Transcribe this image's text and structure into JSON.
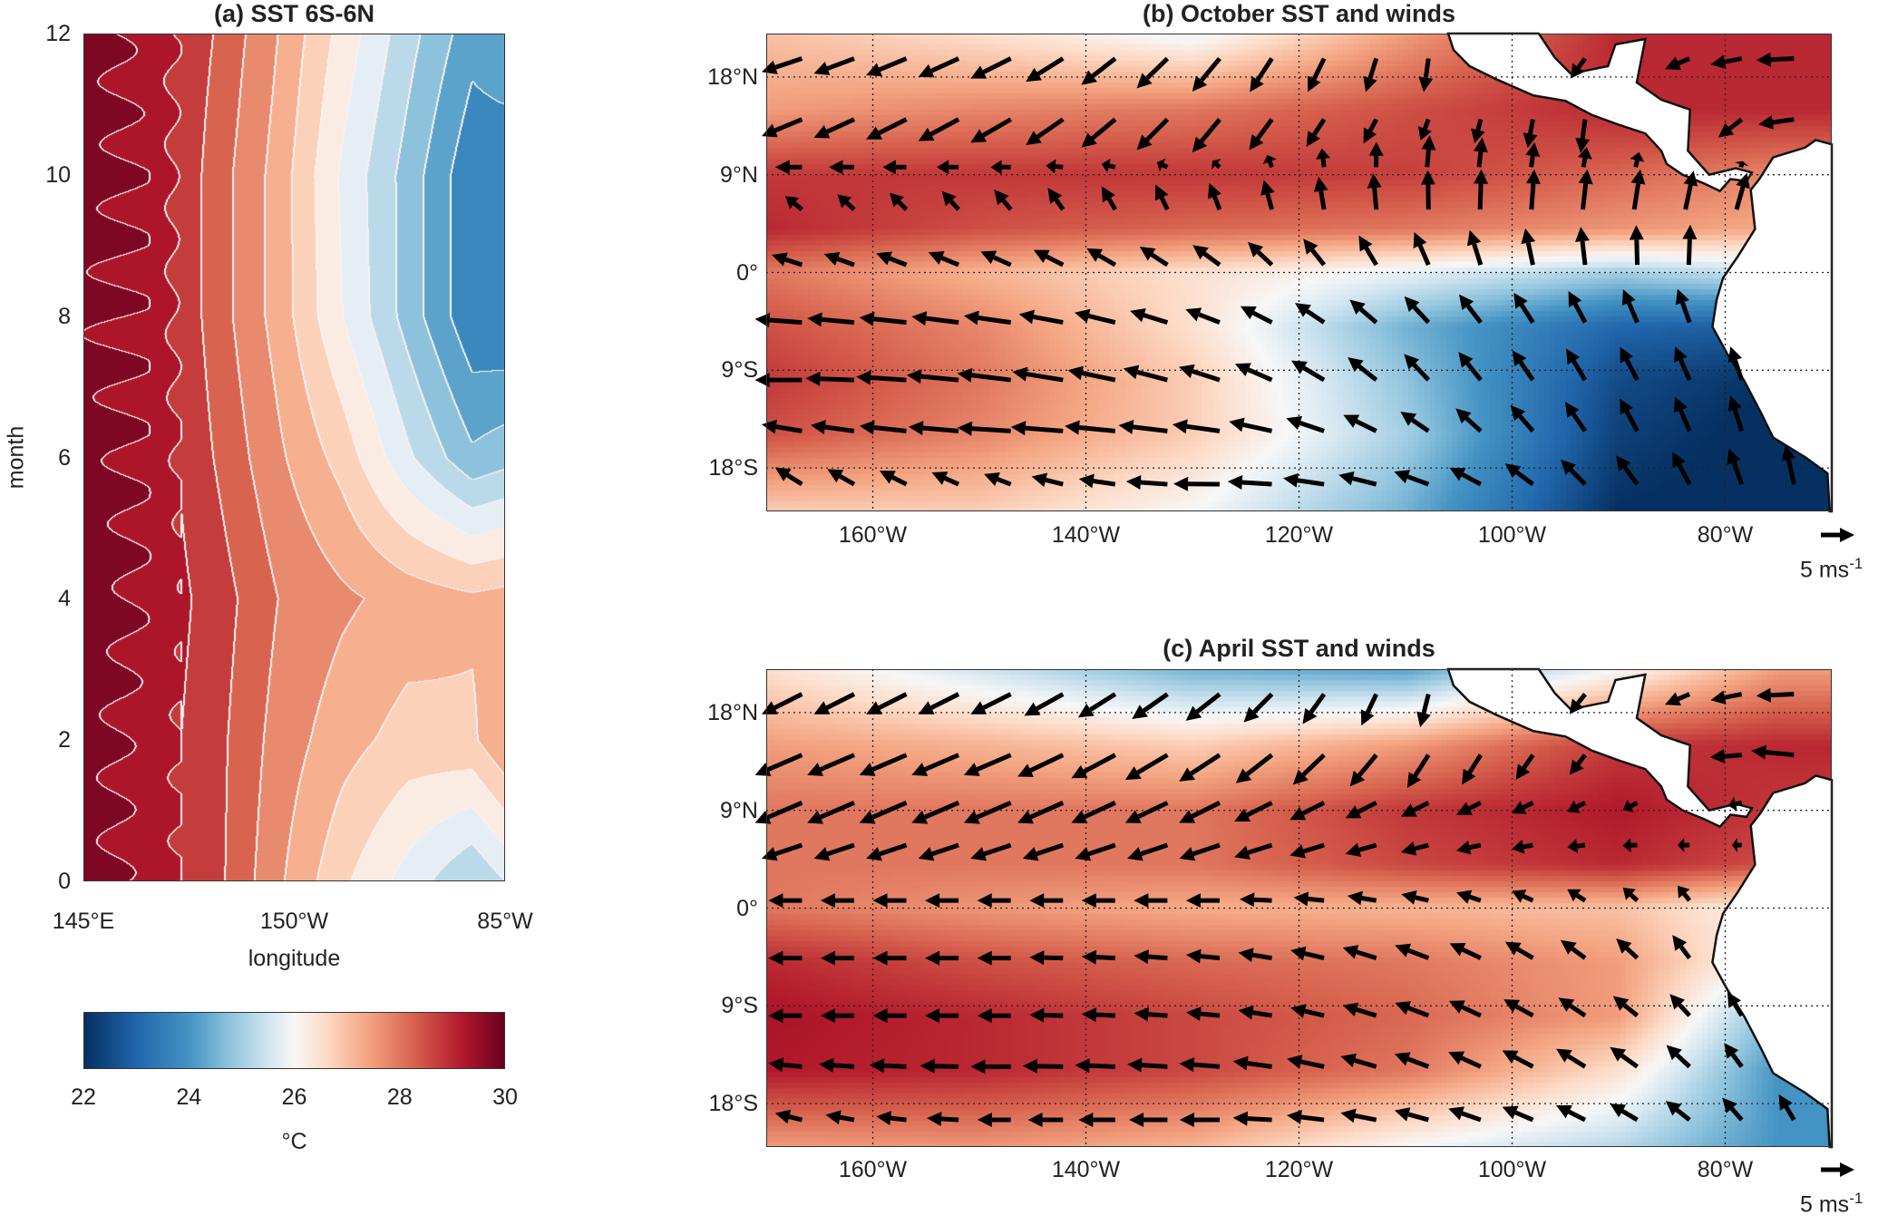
{
  "colormap": {
    "stops": [
      22,
      23,
      24,
      24.8,
      25.5,
      26,
      26.6,
      27.4,
      28.3,
      29.2,
      30
    ],
    "colors": [
      "#053061",
      "#2166ac",
      "#4393c3",
      "#92c5de",
      "#d1e5f0",
      "#f7f7f7",
      "#fddbc7",
      "#f4a582",
      "#d6604d",
      "#b2182b",
      "#67001f"
    ]
  },
  "chart_data": [
    {
      "id": "a",
      "type": "heatmap",
      "subtype": "filled-contour",
      "title": "(a) SST 6S-6N",
      "xlabel": "longitude",
      "ylabel": "month",
      "xlim": [
        145,
        275
      ],
      "ylim": [
        0,
        12
      ],
      "xticks": [
        {
          "value": 145,
          "label": "145°E"
        },
        {
          "value": 210,
          "label": "150°W"
        },
        {
          "value": 275,
          "label": "85°W"
        }
      ],
      "yticks": [
        0,
        2,
        4,
        6,
        8,
        10,
        12
      ],
      "contour_interval": 0.5,
      "lons": [
        145,
        165,
        185,
        205,
        225,
        245,
        265,
        275
      ],
      "months": [
        0,
        2,
        4,
        6,
        8,
        10,
        12
      ],
      "sst": [
        [
          29.7,
          29.3,
          28.7,
          27.6,
          26.6,
          25.8,
          25.0,
          25.5
        ],
        [
          29.7,
          29.3,
          28.7,
          27.8,
          27.2,
          26.8,
          26.9,
          27.5
        ],
        [
          29.8,
          29.4,
          28.8,
          28.0,
          27.6,
          27.3,
          27.1,
          27.2
        ],
        [
          29.7,
          29.4,
          28.5,
          27.6,
          26.8,
          25.6,
          24.6,
          24.8
        ],
        [
          29.6,
          29.4,
          28.3,
          27.3,
          26.0,
          24.8,
          23.6,
          23.5
        ],
        [
          29.7,
          29.4,
          28.3,
          27.3,
          25.9,
          24.8,
          23.6,
          23.5
        ],
        [
          29.7,
          29.3,
          28.5,
          27.5,
          26.3,
          25.2,
          24.2,
          24.5
        ]
      ],
      "colorbar": {
        "ticks": [
          22,
          24,
          26,
          28,
          30
        ],
        "label": "°C",
        "range": [
          22,
          30
        ]
      }
    },
    {
      "id": "b",
      "type": "heatmap",
      "subtype": "map-with-quiver",
      "title": "(b) October SST and winds",
      "xlim": [
        -170,
        -70
      ],
      "ylim": [
        -22,
        22
      ],
      "xticks": [
        {
          "value": -160,
          "label": "160°W"
        },
        {
          "value": -140,
          "label": "140°W"
        },
        {
          "value": -120,
          "label": "120°W"
        },
        {
          "value": -100,
          "label": "100°W"
        },
        {
          "value": -80,
          "label": "80°W"
        }
      ],
      "yticks": [
        {
          "value": 18,
          "label": "18°N"
        },
        {
          "value": 9,
          "label": "9°N"
        },
        {
          "value": 0,
          "label": "0°"
        },
        {
          "value": -9,
          "label": "9°S"
        },
        {
          "value": -18,
          "label": "18°S"
        }
      ],
      "scale_arrow": {
        "value": 5,
        "label": "5 ms",
        "unit_sup": "-1"
      },
      "sst_lats": [
        22,
        15,
        9,
        4,
        0,
        -5,
        -10,
        -15,
        -22
      ],
      "sst_lons": [
        -170,
        -150,
        -130,
        -110,
        -90,
        -75
      ],
      "sst": [
        [
          27.0,
          26.5,
          25.8,
          27.5,
          29.0,
          29.0
        ],
        [
          27.5,
          27.8,
          28.0,
          28.5,
          29.0,
          29.0
        ],
        [
          28.8,
          28.8,
          28.8,
          28.7,
          28.2,
          27.8
        ],
        [
          29.0,
          28.5,
          28.2,
          28.0,
          27.6,
          27.3
        ],
        [
          28.0,
          27.2,
          26.5,
          25.8,
          25.0,
          25.5
        ],
        [
          28.5,
          27.8,
          26.5,
          24.5,
          23.0,
          22.8
        ],
        [
          28.8,
          28.0,
          26.8,
          24.8,
          22.5,
          22.0
        ],
        [
          28.5,
          27.8,
          26.8,
          25.0,
          22.3,
          21.8
        ],
        [
          26.8,
          26.8,
          26.0,
          24.5,
          22.0,
          21.8
        ]
      ],
      "wind_lats": [
        19.7,
        14.1,
        9.7,
        5.8,
        0.7,
        -4.6,
        -9.9,
        -14.6,
        -19.5
      ],
      "wind_lons": [
        -167.5,
        -147.5,
        -127.5,
        -107.5,
        -87.5,
        -72.5
      ],
      "wind_u": [
        [
          -6,
          -6,
          -4,
          -0.5,
          -3,
          -6
        ],
        [
          -6,
          -6,
          -4,
          -1,
          -0.5,
          -6
        ],
        [
          -4,
          -3,
          -1,
          0.5,
          0.5,
          0
        ],
        [
          -2.5,
          -2.5,
          -1.5,
          0,
          1,
          2
        ],
        [
          -4.5,
          -4.5,
          -4,
          -2,
          0,
          1
        ],
        [
          -7,
          -7,
          -5,
          -3.5,
          -2,
          -1
        ],
        [
          -7,
          -8,
          -6,
          -3.5,
          -2.5,
          -1
        ],
        [
          -6,
          -8,
          -7,
          -4,
          -2.5,
          -1
        ],
        [
          -4,
          -4,
          -7,
          -5,
          -3,
          -1
        ]
      ],
      "wind_v": [
        [
          -2,
          -3,
          -5,
          -5,
          -2,
          0
        ],
        [
          -2.5,
          -3.5,
          -5,
          -3,
          -6,
          0
        ],
        [
          0,
          0,
          1,
          5,
          2,
          0
        ],
        [
          2,
          3,
          4,
          6,
          6,
          5
        ],
        [
          1.5,
          2,
          3,
          5,
          6,
          6
        ],
        [
          0.5,
          1,
          2,
          4,
          5,
          5
        ],
        [
          0,
          1,
          2,
          4,
          5,
          5
        ],
        [
          1,
          0.5,
          1,
          3,
          5,
          5.5
        ],
        [
          2.5,
          1.5,
          0,
          2,
          4.5,
          6
        ]
      ]
    },
    {
      "id": "c",
      "type": "heatmap",
      "subtype": "map-with-quiver",
      "title": "(c) April SST and winds",
      "xlim": [
        -170,
        -70
      ],
      "ylim": [
        -22,
        22
      ],
      "xticks": [
        {
          "value": -160,
          "label": "160°W"
        },
        {
          "value": -140,
          "label": "140°W"
        },
        {
          "value": -120,
          "label": "120°W"
        },
        {
          "value": -100,
          "label": "100°W"
        },
        {
          "value": -80,
          "label": "80°W"
        }
      ],
      "yticks": [
        {
          "value": 18,
          "label": "18°N"
        },
        {
          "value": 9,
          "label": "9°N"
        },
        {
          "value": 0,
          "label": "0°"
        },
        {
          "value": -9,
          "label": "9°S"
        },
        {
          "value": -18,
          "label": "18°S"
        }
      ],
      "scale_arrow": {
        "value": 5,
        "label": "5 ms",
        "unit_sup": "-1"
      },
      "sst_lats": [
        22,
        15,
        9,
        4,
        0,
        -5,
        -10,
        -15,
        -22
      ],
      "sst_lons": [
        -170,
        -150,
        -130,
        -110,
        -90,
        -75
      ],
      "sst": [
        [
          26.5,
          25.5,
          24.5,
          24.2,
          26.0,
          27.5
        ],
        [
          27.5,
          27.2,
          26.8,
          27.5,
          28.8,
          29.0
        ],
        [
          28.0,
          28.0,
          28.0,
          28.8,
          29.2,
          28.8
        ],
        [
          28.0,
          28.0,
          28.0,
          28.6,
          29.0,
          28.5
        ],
        [
          28.0,
          27.6,
          27.3,
          27.2,
          27.0,
          26.0
        ],
        [
          29.0,
          28.5,
          28.2,
          28.0,
          27.5,
          25.8
        ],
        [
          29.3,
          29.0,
          28.6,
          28.2,
          27.5,
          24.5
        ],
        [
          29.2,
          29.0,
          28.6,
          28.0,
          26.5,
          24.0
        ],
        [
          27.5,
          27.6,
          27.2,
          26.0,
          25.2,
          24.0
        ]
      ],
      "wind_lats": [
        19.7,
        14.1,
        9.7,
        5.8,
        0.7,
        -4.6,
        -9.9,
        -14.6,
        -19.5
      ],
      "wind_lons": [
        -167.5,
        -147.5,
        -127.5,
        -107.5,
        -87.5,
        -72.5
      ],
      "wind_u": [
        [
          -6,
          -6,
          -5,
          -1,
          -3,
          -6
        ],
        [
          -7,
          -7,
          -6,
          -3,
          -2,
          -7
        ],
        [
          -7,
          -7,
          -6,
          -4,
          -2,
          -2
        ],
        [
          -6,
          -6,
          -6,
          -4,
          -2,
          -1
        ],
        [
          -5,
          -5,
          -5,
          -4,
          -2,
          -1
        ],
        [
          -5,
          -5,
          -5,
          -5,
          -3,
          -1
        ],
        [
          -5,
          -5,
          -5,
          -5,
          -3.5,
          -1
        ],
        [
          -5,
          -6,
          -6,
          -5,
          -4,
          -1.5
        ],
        [
          -4,
          -5,
          -6,
          -5,
          -4,
          -2
        ]
      ],
      "wind_v": [
        [
          -3,
          -3,
          -4,
          -5,
          -2,
          0
        ],
        [
          -3,
          -3,
          -4,
          -5,
          -2,
          1
        ],
        [
          -3,
          -3,
          -3,
          -2,
          -1,
          0
        ],
        [
          -2,
          -2,
          -2,
          -1,
          0,
          0
        ],
        [
          0,
          0,
          0,
          1,
          2,
          3
        ],
        [
          0,
          0,
          0.5,
          2,
          3,
          5
        ],
        [
          0,
          0,
          0.5,
          2,
          3,
          4
        ],
        [
          0.5,
          0,
          0.5,
          2,
          3,
          4
        ],
        [
          1,
          0,
          0,
          1.5,
          2.5,
          4
        ]
      ]
    }
  ]
}
